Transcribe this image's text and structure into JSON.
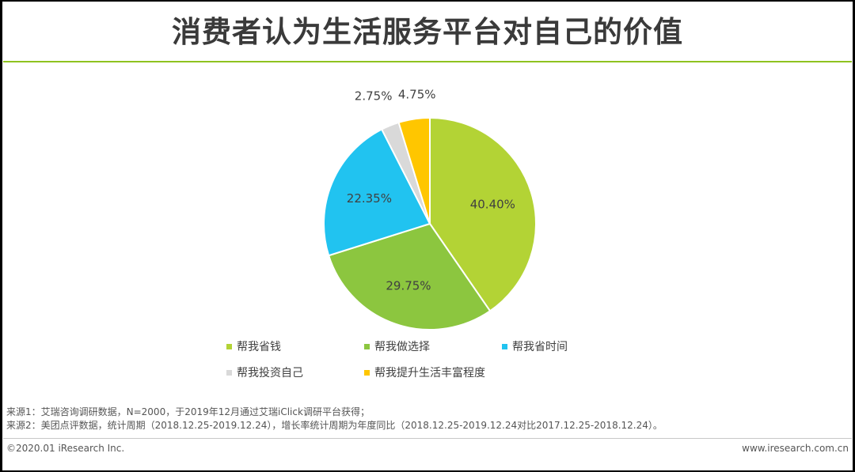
{
  "title": "消费者认为生活服务平台对自己的价值",
  "chart_data": {
    "type": "pie",
    "title": "消费者认为生活服务平台对自己的价值",
    "slices": [
      {
        "label": "帮我省钱",
        "value": 40.4,
        "display": "40.40%",
        "color": "#b3d335"
      },
      {
        "label": "帮我做选择",
        "value": 29.75,
        "display": "29.75%",
        "color": "#8cc63f"
      },
      {
        "label": "帮我省时间",
        "value": 22.35,
        "display": "22.35%",
        "color": "#21c3f0"
      },
      {
        "label": "帮我投资自己",
        "value": 2.75,
        "display": "2.75%",
        "color": "#d9d9d9"
      },
      {
        "label": "帮我提升生活丰富程度",
        "value": 4.75,
        "display": "4.75%",
        "color": "#ffc600"
      }
    ],
    "legend_position": "bottom"
  },
  "legend": [
    {
      "label": "帮我省钱"
    },
    {
      "label": "帮我做选择"
    },
    {
      "label": "帮我省时间"
    },
    {
      "label": "帮我投资自己"
    },
    {
      "label": "帮我提升生活丰富程度"
    }
  ],
  "sources": [
    "来源1：艾瑞咨询调研数据，N=2000，于2019年12月通过艾瑞iClick调研平台获得；",
    "来源2：美团点评数据，统计周期（2018.12.25-2019.12.24），增长率统计周期为年度同比（2018.12.25-2019.12.24对比2017.12.25-2018.12.24）。"
  ],
  "footer": {
    "copyright": "©2020.01 iResearch Inc.",
    "website": "www.iresearch.com.cn"
  }
}
